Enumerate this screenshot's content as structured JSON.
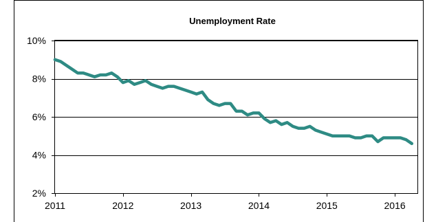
{
  "chart_data": {
    "type": "line",
    "title": "Unemployment Rate",
    "xlabel": "",
    "ylabel": "",
    "xlim": [
      2011,
      2016.333
    ],
    "ylim": [
      2,
      10
    ],
    "y_ticks": [
      "2%",
      "4%",
      "6%",
      "8%",
      "10%"
    ],
    "y_tick_values": [
      2,
      4,
      6,
      8,
      10
    ],
    "x_ticks": [
      "2011",
      "2012",
      "2013",
      "2014",
      "2015",
      "2016"
    ],
    "x_tick_values": [
      2011,
      2012,
      2013,
      2014,
      2015,
      2016
    ],
    "grid": "horizontal",
    "legend": "none",
    "series": [
      {
        "color": "#2e8b84",
        "x": [
          2011.0,
          2011.083,
          2011.167,
          2011.25,
          2011.333,
          2011.417,
          2011.5,
          2011.583,
          2011.667,
          2011.75,
          2011.833,
          2011.917,
          2012.0,
          2012.083,
          2012.167,
          2012.25,
          2012.333,
          2012.417,
          2012.5,
          2012.583,
          2012.667,
          2012.75,
          2012.833,
          2012.917,
          2013.0,
          2013.083,
          2013.167,
          2013.25,
          2013.333,
          2013.417,
          2013.5,
          2013.583,
          2013.667,
          2013.75,
          2013.833,
          2013.917,
          2014.0,
          2014.083,
          2014.167,
          2014.25,
          2014.333,
          2014.417,
          2014.5,
          2014.583,
          2014.667,
          2014.75,
          2014.833,
          2014.917,
          2015.0,
          2015.083,
          2015.167,
          2015.25,
          2015.333,
          2015.417,
          2015.5,
          2015.583,
          2015.667,
          2015.75,
          2015.833,
          2015.917,
          2016.0,
          2016.083,
          2016.167,
          2016.25
        ],
        "values": [
          9.0,
          8.9,
          8.7,
          8.5,
          8.3,
          8.3,
          8.2,
          8.1,
          8.2,
          8.2,
          8.3,
          8.1,
          7.8,
          7.9,
          7.7,
          7.8,
          7.9,
          7.7,
          7.6,
          7.5,
          7.6,
          7.6,
          7.5,
          7.4,
          7.3,
          7.2,
          7.3,
          6.9,
          6.7,
          6.6,
          6.7,
          6.7,
          6.3,
          6.3,
          6.1,
          6.2,
          6.2,
          5.9,
          5.7,
          5.8,
          5.6,
          5.7,
          5.5,
          5.4,
          5.4,
          5.5,
          5.3,
          5.2,
          5.1,
          5.0,
          5.0,
          5.0,
          5.0,
          4.9,
          4.9,
          5.0,
          5.0,
          4.7,
          4.9,
          4.9,
          4.9,
          4.9,
          4.8,
          4.6
        ]
      }
    ]
  }
}
